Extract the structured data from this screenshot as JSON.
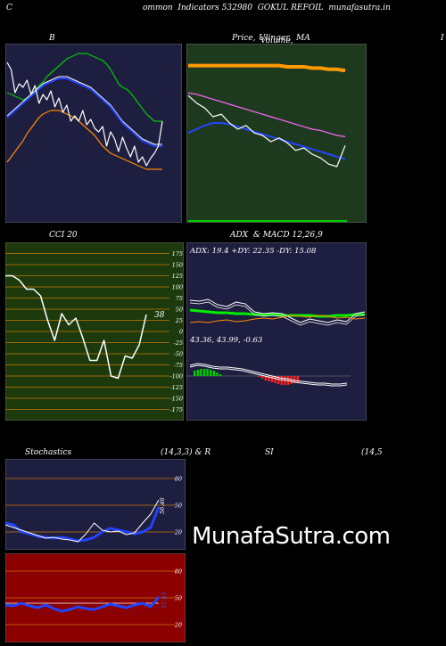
{
  "header": {
    "left_letter": "C",
    "title": "ommon  Indicators 532980  GOKUL REFOIL  munafasutra.in"
  },
  "panels": {
    "bollinger": {
      "title": "B"
    },
    "price": {
      "title_a": "Price,",
      "title_b": "Ulinger,",
      "title_c": "Volume,",
      "title_d": "MA"
    },
    "right_edge_letter": "I",
    "cci": {
      "title": "CCI 20",
      "value_label": "38",
      "ticks": [
        "175",
        "150",
        "125",
        "100",
        "75",
        "50",
        "25",
        "0",
        "-25",
        "-50",
        "-75",
        "-100",
        "-125",
        "-150",
        "-175"
      ]
    },
    "adx": {
      "title": "ADX  & MACD 12,26,9",
      "readout": "ADX: 19.4  +DY: 22.35 -DY: 15.08"
    },
    "macd": {
      "readout": "43.36,  43.99,  -0.63"
    },
    "stoch": {
      "title_a": "Stochastics",
      "title_b": "(14,3,3) & R",
      "title_c": "SI",
      "title_d": "(14,5",
      "ticks": [
        "80",
        "50",
        "20"
      ],
      "value_label": "56.46"
    },
    "rsi": {
      "ticks": [
        "80",
        "50",
        "20"
      ],
      "value_label": "51.43"
    }
  },
  "watermark": "MunafaSutra.com",
  "colors": {
    "navy_bg": "#1e1e40",
    "green_bg": "#1e3a1e",
    "cci_bg": "#1c3a0c",
    "red_bg": "#8b0000",
    "orange": "#ff8c00",
    "blue": "#1a3aff",
    "green_line": "#00ee00",
    "white": "#ffffff"
  },
  "chart_data": [
    {
      "type": "line",
      "name_ref": "bollinger",
      "series": [
        {
          "color": "#00cc00",
          "values": [
            73,
            72,
            71,
            70,
            69,
            70,
            72,
            74,
            77,
            79,
            82,
            84,
            86,
            88,
            90,
            92,
            93,
            94,
            95,
            95,
            95,
            94,
            93,
            92,
            91,
            89,
            86,
            82,
            78,
            76,
            75,
            73,
            70,
            67,
            64,
            61,
            59,
            57,
            57,
            57
          ]
        },
        {
          "color": "#2244ff",
          "values": [
            59,
            61,
            63,
            65,
            67,
            69,
            71,
            73,
            75,
            77,
            78,
            79,
            80,
            81,
            81,
            81,
            80,
            79,
            78,
            77,
            76,
            75,
            73,
            71,
            69,
            67,
            65,
            62,
            59,
            56,
            54,
            52,
            50,
            48,
            46,
            45,
            44,
            43,
            43,
            43
          ]
        },
        {
          "color": "#ff8c00",
          "values": [
            34,
            37,
            40,
            43,
            46,
            50,
            53,
            56,
            59,
            61,
            62,
            63,
            63,
            63,
            62,
            61,
            60,
            59,
            57,
            55,
            53,
            51,
            49,
            46,
            43,
            41,
            39,
            38,
            37,
            36,
            35,
            34,
            33,
            32,
            31,
            30,
            30,
            30,
            30,
            30
          ]
        },
        {
          "color": "#ffffff",
          "values": [
            90,
            86,
            73,
            78,
            76,
            80,
            72,
            77,
            67,
            72,
            69,
            74,
            65,
            70,
            62,
            66,
            57,
            60,
            57,
            63,
            55,
            58,
            53,
            51,
            54,
            43,
            51,
            47,
            40,
            48,
            42,
            37,
            43,
            34,
            37,
            32,
            36,
            39,
            43,
            57
          ]
        }
      ]
    },
    {
      "type": "line",
      "name_ref": "price",
      "series": [
        {
          "color": "#ff9900",
          "values": [
            126,
            126,
            126,
            126,
            126,
            126,
            126,
            126,
            126,
            126,
            126,
            126,
            125,
            125,
            125,
            124,
            124,
            123,
            123,
            122
          ]
        },
        {
          "color": "#ff66ff",
          "values": [
            104,
            103,
            101,
            99,
            97,
            95,
            93,
            91,
            89,
            87,
            85,
            83,
            81,
            79,
            77,
            75,
            74,
            72,
            70,
            69
          ]
        },
        {
          "color": "#2244ff",
          "values": [
            72,
            75,
            78,
            80,
            80,
            79,
            77,
            75,
            73,
            71,
            69,
            67,
            65,
            63,
            61,
            59,
            57,
            55,
            53,
            51
          ]
        },
        {
          "color": "#ffffff",
          "values": [
            102,
            96,
            92,
            85,
            87,
            80,
            75,
            78,
            72,
            70,
            65,
            68,
            64,
            58,
            60,
            55,
            52,
            47,
            45,
            62
          ]
        }
      ]
    },
    {
      "type": "line",
      "name_ref": "cci",
      "ylim": [
        -200,
        200
      ],
      "series": [
        {
          "color": "#ffffff",
          "values": [
            125,
            125,
            115,
            95,
            95,
            80,
            25,
            -20,
            40,
            15,
            30,
            -15,
            -65,
            -65,
            -20,
            -100,
            -105,
            -55,
            -60,
            -30,
            38
          ]
        }
      ]
    },
    {
      "type": "line",
      "name_ref": "adx",
      "series": [
        {
          "color": "#00ee00",
          "values": [
            24,
            23,
            22,
            21,
            21,
            20,
            20,
            19,
            19,
            19,
            18,
            18,
            18,
            18,
            17,
            17,
            18,
            18,
            19,
            19
          ]
        },
        {
          "color": "#ffffff",
          "values": [
            35,
            34,
            36,
            30,
            28,
            33,
            31,
            22,
            20,
            21,
            20,
            15,
            10,
            14,
            12,
            10,
            13,
            11,
            20,
            22
          ]
        },
        {
          "color": "#ff8c00",
          "values": [
            10,
            11,
            10,
            12,
            13,
            11,
            12,
            14,
            15,
            14,
            16,
            18,
            17,
            16,
            18,
            17,
            15,
            16,
            14,
            15
          ]
        }
      ]
    },
    {
      "type": "line",
      "name_ref": "stochastics",
      "ylim": [
        0,
        100
      ],
      "series": [
        {
          "color": "#2244ff",
          "values": [
            30,
            28,
            20,
            18,
            15,
            14,
            13,
            14,
            12,
            10,
            11,
            14,
            20,
            24,
            22,
            20,
            18,
            20,
            25,
            48
          ]
        },
        {
          "color": "#ffffff",
          "values": [
            28,
            25,
            22,
            19,
            16,
            13,
            14,
            12,
            11,
            9,
            18,
            30,
            22,
            20,
            21,
            17,
            19,
            30,
            40,
            56
          ]
        }
      ]
    },
    {
      "type": "line",
      "name_ref": "rsi",
      "ylim": [
        0,
        100
      ],
      "series": [
        {
          "color": "#2244ff",
          "values": [
            42,
            41,
            44,
            41,
            39,
            42,
            38,
            35,
            37,
            40,
            38,
            37,
            40,
            43,
            41,
            39,
            42,
            44,
            40,
            51
          ]
        },
        {
          "color": "#ffffff",
          "values": [
            44,
            44,
            44,
            44,
            44,
            44,
            44,
            44,
            44,
            44,
            44,
            44,
            44,
            44,
            44,
            44,
            44,
            44,
            44,
            44
          ]
        }
      ]
    }
  ]
}
